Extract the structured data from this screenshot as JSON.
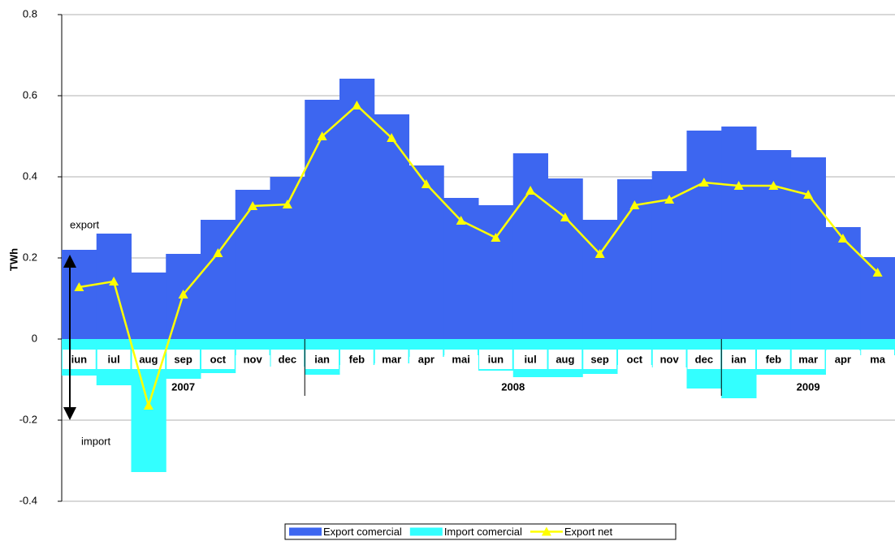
{
  "chart_data": {
    "type": "bar-line",
    "y_axis_label": "TWh",
    "categories": [
      "iun",
      "iul",
      "aug",
      "sep",
      "oct",
      "nov",
      "dec",
      "ian",
      "feb",
      "mar",
      "apr",
      "mai",
      "iun",
      "iul",
      "aug",
      "sep",
      "oct",
      "nov",
      "dec",
      "ian",
      "feb",
      "mar",
      "apr",
      "ma"
    ],
    "year_labels": [
      "2007",
      "2008",
      "2009"
    ],
    "series": [
      {
        "name": "Export comercial",
        "type": "bar",
        "color": "#3d66f0",
        "values": [
          0.22,
          0.26,
          0.164,
          0.21,
          0.294,
          0.368,
          0.4,
          0.59,
          0.642,
          0.554,
          0.428,
          0.348,
          0.33,
          0.458,
          0.396,
          0.294,
          0.394,
          0.414,
          0.514,
          0.524,
          0.466,
          0.448,
          0.276,
          0.202
        ]
      },
      {
        "name": "Import comercial",
        "type": "bar",
        "color": "#33ffff",
        "values": [
          -0.09,
          -0.114,
          -0.328,
          -0.098,
          -0.084,
          -0.04,
          -0.068,
          -0.088,
          -0.064,
          -0.06,
          -0.044,
          -0.04,
          -0.078,
          -0.094,
          -0.094,
          -0.086,
          -0.064,
          -0.07,
          -0.122,
          -0.146,
          -0.088,
          -0.088,
          -0.028,
          -0.04
        ]
      },
      {
        "name": "Export net",
        "type": "line",
        "color": "#ffff00",
        "values": [
          0.128,
          0.142,
          -0.164,
          0.11,
          0.212,
          0.328,
          0.332,
          0.5,
          0.576,
          0.496,
          0.382,
          0.292,
          0.25,
          0.366,
          0.3,
          0.21,
          0.33,
          0.344,
          0.386,
          0.378,
          0.378,
          0.356,
          0.248,
          0.164
        ]
      }
    ],
    "annotations": [
      "export",
      "import"
    ],
    "ylim": [
      -0.4,
      0.8
    ],
    "yticks": [
      -0.4,
      -0.2,
      0,
      0.2,
      0.4,
      0.6,
      0.8
    ],
    "grid": true,
    "legend": "bottom"
  }
}
